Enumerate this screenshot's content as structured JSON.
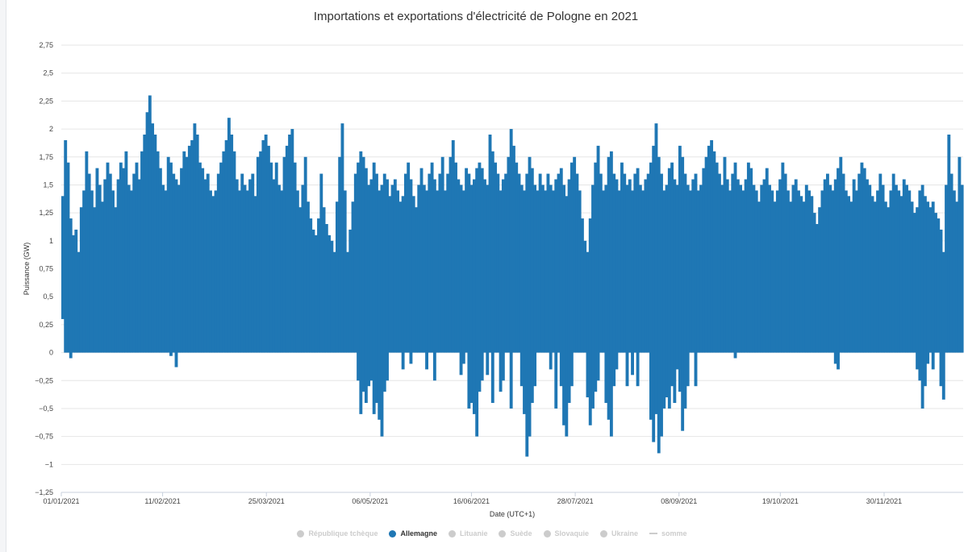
{
  "chart_data": {
    "type": "bar",
    "title": "Importations et exportations d'électricité de Pologne en 2021",
    "xlabel": "Date (UTC+1)",
    "ylabel": "Puissance (GW)",
    "ylim": [
      -1.25,
      2.75
    ],
    "yticks": [
      {
        "value": 2.75,
        "label": "2,75"
      },
      {
        "value": 2.5,
        "label": "2,5"
      },
      {
        "value": 2.25,
        "label": "2,25"
      },
      {
        "value": 2,
        "label": "2"
      },
      {
        "value": 1.75,
        "label": "1,75"
      },
      {
        "value": 1.5,
        "label": "1,5"
      },
      {
        "value": 1.25,
        "label": "1,25"
      },
      {
        "value": 1,
        "label": "1"
      },
      {
        "value": 0.75,
        "label": "0,75"
      },
      {
        "value": 0.5,
        "label": "0,5"
      },
      {
        "value": 0.25,
        "label": "0,25"
      },
      {
        "value": 0,
        "label": "0"
      },
      {
        "value": -0.25,
        "label": "−0,25"
      },
      {
        "value": -0.5,
        "label": "−0,5"
      },
      {
        "value": -0.75,
        "label": "−0,75"
      },
      {
        "value": -1,
        "label": "−1"
      },
      {
        "value": -1.25,
        "label": "−1,25"
      }
    ],
    "xticks": [
      {
        "day": 0,
        "label": "01/01/2021"
      },
      {
        "day": 41,
        "label": "11/02/2021"
      },
      {
        "day": 83,
        "label": "25/03/2021"
      },
      {
        "day": 125,
        "label": "06/05/2021"
      },
      {
        "day": 166,
        "label": "16/06/2021"
      },
      {
        "day": 208,
        "label": "28/07/2021"
      },
      {
        "day": 250,
        "label": "08/09/2021"
      },
      {
        "day": 291,
        "label": "19/10/2021"
      },
      {
        "day": 333,
        "label": "30/11/2021"
      }
    ],
    "x_range_days": [
      0,
      365
    ],
    "series": [
      {
        "name": "Allemagne",
        "color": "#1f77b4",
        "x_unit": "day of year (approx.)",
        "max": [
          1.4,
          1.9,
          1.7,
          1.2,
          1.05,
          1.1,
          0.9,
          1.3,
          1.45,
          1.8,
          1.6,
          1.45,
          1.3,
          1.65,
          1.5,
          1.35,
          1.55,
          1.7,
          1.6,
          1.45,
          1.3,
          1.55,
          1.7,
          1.65,
          1.8,
          1.5,
          1.45,
          1.6,
          1.7,
          1.55,
          1.8,
          1.95,
          2.15,
          2.3,
          2.05,
          1.95,
          1.8,
          1.65,
          1.5,
          1.45,
          1.75,
          1.7,
          1.6,
          1.55,
          1.5,
          1.65,
          1.8,
          1.75,
          1.85,
          1.9,
          2.05,
          1.95,
          1.7,
          1.65,
          1.55,
          1.6,
          1.45,
          1.4,
          1.45,
          1.6,
          1.7,
          1.8,
          1.9,
          2.1,
          1.95,
          1.8,
          1.55,
          1.45,
          1.6,
          1.5,
          1.45,
          1.55,
          1.6,
          1.4,
          1.75,
          1.8,
          1.9,
          1.95,
          1.85,
          1.7,
          1.55,
          1.7,
          1.5,
          1.45,
          1.75,
          1.85,
          1.95,
          2.0,
          1.7,
          1.45,
          1.3,
          1.5,
          1.75,
          1.35,
          1.2,
          1.1,
          1.05,
          1.2,
          1.6,
          1.3,
          1.15,
          1.05,
          1.0,
          0.9,
          1.35,
          1.75,
          2.05,
          1.45,
          0.9,
          1.1,
          1.35,
          1.6,
          1.7,
          1.8,
          1.75,
          1.65,
          1.5,
          1.55,
          1.7,
          1.6,
          1.45,
          1.5,
          1.6,
          1.55,
          1.4,
          1.5,
          1.55,
          1.45,
          1.35,
          1.4,
          1.6,
          1.7,
          1.55,
          1.4,
          1.3,
          1.5,
          1.65,
          1.5,
          1.45,
          1.6,
          1.7,
          1.55,
          1.45,
          1.6,
          1.75,
          1.45,
          1.6,
          1.75,
          1.9,
          1.7,
          1.55,
          1.5,
          1.45,
          1.65,
          1.6,
          1.5,
          1.55,
          1.65,
          1.7,
          1.65,
          1.55,
          1.5,
          1.95,
          1.8,
          1.7,
          1.6,
          1.45,
          1.55,
          1.6,
          1.75,
          2.0,
          1.85,
          1.7,
          1.6,
          1.5,
          1.45,
          1.6,
          1.75,
          1.65,
          1.5,
          1.45,
          1.6,
          1.5,
          1.45,
          1.6,
          1.5,
          1.45,
          1.55,
          1.6,
          1.65,
          1.5,
          1.4,
          1.55,
          1.7,
          1.75,
          1.6,
          1.45,
          1.2,
          1.0,
          0.9,
          1.2,
          1.5,
          1.7,
          1.85,
          1.6,
          1.45,
          1.5,
          1.75,
          1.8,
          1.6,
          1.55,
          1.45,
          1.7,
          1.6,
          1.5,
          1.55,
          1.45,
          1.6,
          1.65,
          1.5,
          1.45,
          1.55,
          1.6,
          1.7,
          1.85,
          2.05,
          1.75,
          1.6,
          1.45,
          1.5,
          1.65,
          1.7,
          1.55,
          1.5,
          1.85,
          1.75,
          1.6,
          1.5,
          1.45,
          1.55,
          1.6,
          1.45,
          1.5,
          1.65,
          1.75,
          1.85,
          1.9,
          1.8,
          1.7,
          1.6,
          1.5,
          1.75,
          1.55,
          1.45,
          1.6,
          1.7,
          1.55,
          1.5,
          1.45,
          1.55,
          1.7,
          1.65,
          1.5,
          1.45,
          1.35,
          1.5,
          1.55,
          1.65,
          1.5,
          1.45,
          1.35,
          1.45,
          1.55,
          1.7,
          1.6,
          1.45,
          1.35,
          1.5,
          1.55,
          1.45,
          1.4,
          1.35,
          1.5,
          1.45,
          1.4,
          1.25,
          1.15,
          1.3,
          1.45,
          1.55,
          1.6,
          1.5,
          1.45,
          1.55,
          1.65,
          1.75,
          1.6,
          1.45,
          1.4,
          1.35,
          1.55,
          1.45,
          1.6,
          1.7,
          1.65,
          1.55,
          1.5,
          1.4,
          1.35,
          1.45,
          1.6,
          1.5,
          1.35,
          1.3,
          1.45,
          1.6,
          1.5,
          1.45,
          1.4,
          1.55,
          1.5,
          1.45,
          1.35,
          1.25,
          1.3,
          1.45,
          1.5,
          1.4,
          1.35,
          1.3,
          1.35,
          1.25,
          1.2,
          1.1,
          0.9,
          1.5,
          1.95,
          1.6,
          1.45,
          1.35,
          1.75,
          1.5
        ],
        "min": [
          0.3,
          0,
          0,
          -0.05,
          0,
          0,
          0,
          0,
          0,
          0,
          0,
          0,
          0,
          0,
          0,
          0,
          0,
          0,
          0,
          0,
          0,
          0,
          0,
          0,
          0,
          0,
          0,
          0,
          0,
          0,
          0,
          0,
          0,
          0,
          0,
          0,
          0,
          0,
          0,
          0,
          0,
          -0.03,
          0,
          -0.13,
          0,
          0,
          0,
          0,
          0,
          0,
          0,
          0,
          0,
          0,
          0,
          0,
          0,
          0,
          0,
          0,
          0,
          0,
          0,
          0,
          0,
          0,
          0,
          0,
          0,
          0,
          0,
          0,
          0,
          0,
          0,
          0,
          0,
          0,
          0,
          0,
          0,
          0,
          0,
          0,
          0,
          0,
          0,
          0,
          0,
          0,
          0,
          0,
          0,
          0,
          0,
          0,
          0,
          0,
          0,
          0,
          0,
          0,
          0,
          0,
          0,
          0,
          0,
          0,
          0,
          0,
          0,
          0,
          -0.25,
          -0.55,
          -0.35,
          -0.45,
          -0.3,
          -0.25,
          -0.55,
          -0.45,
          -0.6,
          -0.75,
          -0.35,
          -0.25,
          0,
          0,
          0,
          0,
          0,
          -0.15,
          0,
          0,
          -0.1,
          0,
          0,
          0,
          0,
          0,
          -0.15,
          0,
          0,
          -0.25,
          0,
          0,
          0,
          0,
          0,
          0,
          0,
          0,
          0,
          -0.2,
          -0.1,
          0,
          -0.5,
          -0.45,
          -0.55,
          -0.75,
          -0.35,
          -0.25,
          0,
          -0.2,
          0,
          -0.45,
          0,
          0,
          -0.35,
          -0.25,
          0,
          0,
          -0.5,
          0,
          0,
          0,
          -0.3,
          -0.55,
          -0.93,
          -0.75,
          -0.45,
          -0.3,
          0,
          0,
          0,
          0,
          0,
          -0.15,
          0,
          -0.5,
          0,
          -0.3,
          -0.65,
          -0.75,
          -0.45,
          -0.3,
          0,
          0,
          0,
          0,
          0,
          -0.4,
          -0.65,
          -0.5,
          -0.35,
          -0.25,
          0,
          0,
          -0.45,
          -0.6,
          -0.75,
          -0.3,
          -0.15,
          0,
          0,
          0,
          -0.3,
          0,
          -0.2,
          0,
          -0.3,
          0,
          0,
          0,
          0,
          -0.6,
          -0.8,
          -0.55,
          -0.9,
          -0.75,
          -0.5,
          -0.4,
          -0.5,
          -0.3,
          -0.45,
          -0.15,
          -0.35,
          -0.7,
          -0.5,
          -0.3,
          0,
          0,
          -0.3,
          0,
          0,
          0,
          0,
          0,
          0,
          0,
          0,
          0,
          0,
          0,
          0,
          0,
          0,
          -0.05,
          0,
          0,
          0,
          0,
          0,
          0,
          0,
          0,
          0,
          0,
          0,
          0,
          0,
          0,
          0,
          0,
          0,
          0,
          0,
          0,
          0,
          0,
          0,
          0,
          0,
          0,
          0,
          0,
          0,
          0,
          0,
          0,
          0,
          0,
          0,
          0,
          0,
          -0.1,
          -0.15,
          0,
          0,
          0,
          0,
          0,
          0,
          0,
          0,
          0,
          0,
          0,
          0,
          0,
          0,
          0,
          0,
          0,
          0,
          0,
          0,
          0,
          0,
          0,
          0,
          0,
          0,
          0,
          0,
          0,
          -0.15,
          -0.25,
          -0.5,
          -0.3,
          -0.1,
          0,
          -0.15,
          0,
          0,
          -0.3,
          -0.42,
          0,
          0,
          0,
          0,
          0,
          0,
          0,
          0,
          0
        ]
      }
    ],
    "legend": [
      {
        "name": "République tchèque",
        "shape": "dot",
        "active": false
      },
      {
        "name": "Allemagne",
        "shape": "dot",
        "active": true
      },
      {
        "name": "Lituanie",
        "shape": "dot",
        "active": false
      },
      {
        "name": "Suède",
        "shape": "dot",
        "active": false
      },
      {
        "name": "Slovaquie",
        "shape": "dot",
        "active": false
      },
      {
        "name": "Ukraine",
        "shape": "dot",
        "active": false
      },
      {
        "name": "somme",
        "shape": "line",
        "active": false
      }
    ],
    "colors": {
      "active_series": "#1f77b4",
      "inactive_legend": "#cccccc",
      "active_legend_text": "#333333",
      "grid": "#e6e6e6"
    }
  }
}
